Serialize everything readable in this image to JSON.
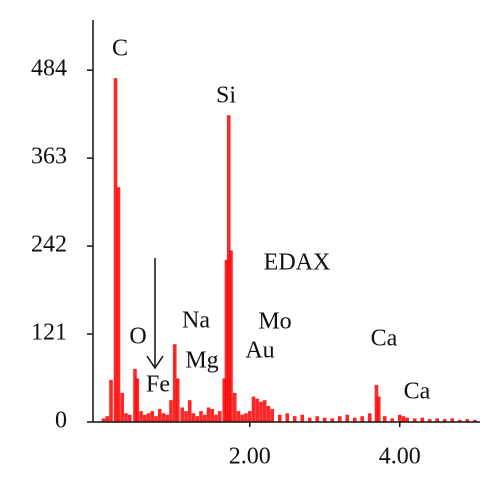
{
  "chart_data": {
    "type": "bar",
    "color": "#ff0000",
    "x": [
      0.05,
      0.1,
      0.15,
      0.21,
      0.25,
      0.3,
      0.35,
      0.4,
      0.47,
      0.5,
      0.55,
      0.6,
      0.65,
      0.7,
      0.75,
      0.8,
      0.85,
      0.9,
      0.95,
      1.0,
      1.04,
      1.1,
      1.15,
      1.2,
      1.25,
      1.3,
      1.35,
      1.4,
      1.45,
      1.5,
      1.55,
      1.6,
      1.66,
      1.69,
      1.72,
      1.75,
      1.8,
      1.85,
      1.9,
      1.95,
      2.0,
      2.05,
      2.1,
      2.15,
      2.2,
      2.25,
      2.3,
      2.4,
      2.5,
      2.6,
      2.7,
      2.8,
      2.9,
      3.0,
      3.1,
      3.2,
      3.3,
      3.4,
      3.5,
      3.6,
      3.69,
      3.72,
      3.8,
      3.9,
      4.0,
      4.05,
      4.1,
      4.2,
      4.3,
      4.4,
      4.5,
      4.6,
      4.7,
      4.8,
      4.9,
      5.0
    ],
    "values": [
      5,
      8,
      58,
      473,
      323,
      40,
      12,
      10,
      73,
      60,
      15,
      10,
      12,
      15,
      8,
      18,
      12,
      10,
      30,
      107,
      60,
      20,
      15,
      30,
      12,
      8,
      15,
      10,
      20,
      18,
      10,
      15,
      60,
      223,
      422,
      236,
      40,
      15,
      10,
      12,
      15,
      35,
      32,
      28,
      30,
      22,
      18,
      10,
      12,
      8,
      10,
      6,
      8,
      6,
      5,
      8,
      10,
      6,
      8,
      12,
      51,
      35,
      8,
      5,
      10,
      8,
      6,
      5,
      6,
      4,
      5,
      4,
      5,
      3,
      4,
      3
    ],
    "xlim": [
      -0.09,
      5.07
    ],
    "ylim": [
      0,
      553
    ],
    "xticks": [
      {
        "value": 2,
        "label": "2.00"
      },
      {
        "value": 4,
        "label": "4.00"
      }
    ],
    "yticks": [
      0,
      121,
      242,
      363,
      484
    ],
    "annotations": [
      "C",
      "Si",
      "EDAX",
      "Na",
      "O",
      "Mg",
      "Fe",
      "Mo",
      "Au",
      "Ca",
      "Ca"
    ]
  }
}
